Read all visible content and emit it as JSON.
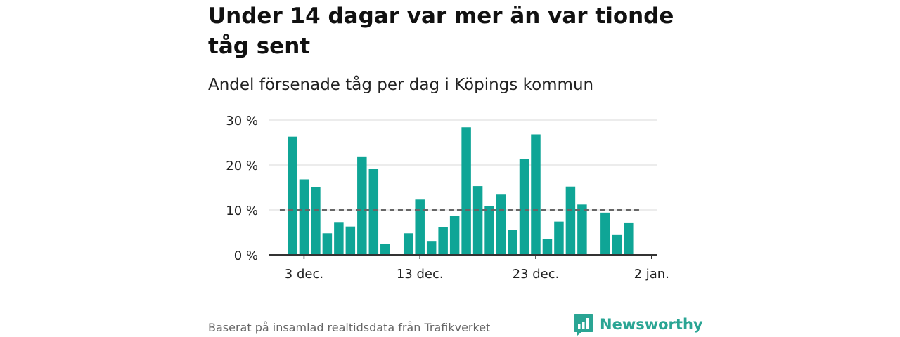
{
  "header": {
    "title": "Under 14 dagar var mer än var tionde tåg sent",
    "subtitle": "Andel försenade tåg per dag i Köpings kommun"
  },
  "footer": {
    "source": "Baserat på insamlad realtidsdata från Trafikverket",
    "brand": "Newsworthy"
  },
  "colors": {
    "bar": "#0fa596",
    "reference_line": "#666666",
    "brand": "#2aa594"
  },
  "chart_data": {
    "type": "bar",
    "title": "Andel försenade tåg per dag i Köpings kommun",
    "xlabel": "",
    "ylabel": "",
    "x_tick_labels": [
      "3 dec.",
      "13 dec.",
      "23 dec.",
      "2 jan."
    ],
    "x_tick_days": [
      3,
      13,
      23,
      33
    ],
    "xlim": [
      0,
      33.5
    ],
    "y_tick_labels": [
      "0 %",
      "10 %",
      "20 %",
      "30 %"
    ],
    "y_ticks": [
      0,
      10,
      20,
      30
    ],
    "ylim": [
      0,
      30
    ],
    "grid": true,
    "reference_line": 10,
    "x_unit": "day (1 = 1 dec.)",
    "x": [
      2,
      3,
      4,
      5,
      6,
      7,
      8,
      9,
      10,
      11,
      12,
      13,
      14,
      15,
      16,
      17,
      18,
      19,
      20,
      21,
      22,
      23,
      24,
      25,
      26,
      27,
      28,
      29,
      30,
      31,
      32
    ],
    "values": [
      26.3,
      16.8,
      15.1,
      4.8,
      7.3,
      6.3,
      21.9,
      19.2,
      2.4,
      null,
      4.8,
      12.3,
      3.1,
      6.1,
      8.7,
      28.4,
      15.3,
      10.9,
      13.4,
      5.5,
      21.3,
      26.8,
      3.5,
      7.4,
      15.2,
      11.2,
      null,
      9.4,
      4.4,
      7.2,
      null
    ]
  }
}
